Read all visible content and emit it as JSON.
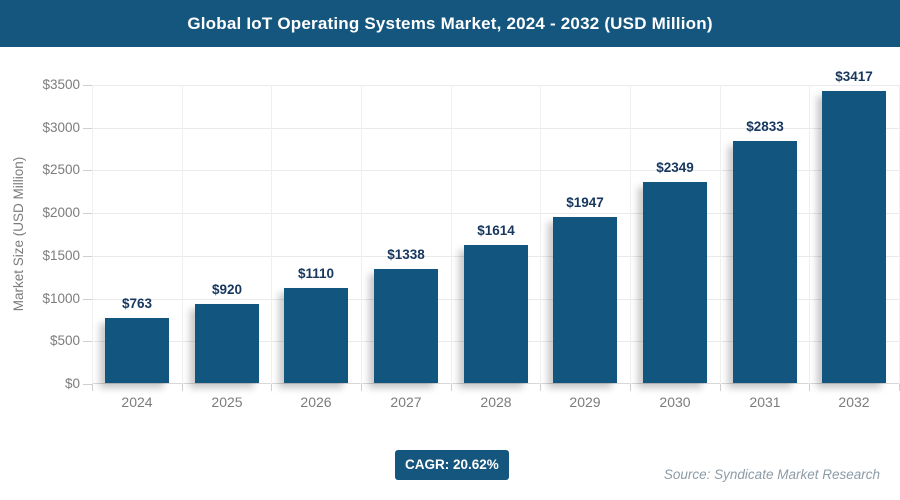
{
  "header": {
    "title": "Global IoT Operating Systems Market, 2024 - 2032 (USD Million)",
    "bg_color": "#15567E",
    "text_color": "#FFFFFF"
  },
  "chart_data": {
    "type": "bar",
    "title": "Global IoT Operating Systems Market, 2024 - 2032 (USD Million)",
    "categories": [
      "2024",
      "2025",
      "2026",
      "2027",
      "2028",
      "2029",
      "2030",
      "2031",
      "2032"
    ],
    "values": [
      763,
      920,
      1110,
      1338,
      1614,
      1947,
      2349,
      2833,
      3417
    ],
    "value_labels": [
      "$763",
      "$920",
      "$1110",
      "$1338",
      "$1614",
      "$1947",
      "$2349",
      "$2833",
      "$3417"
    ],
    "xlabel": "",
    "ylabel": "Market Size (USD Million)",
    "ylim": [
      0,
      3500
    ],
    "ytick_values": [
      0,
      500,
      1000,
      1500,
      2000,
      2500,
      3000,
      3500
    ],
    "ytick_labels": [
      "$0",
      "$500",
      "$1000",
      "$1500",
      "$2000",
      "$2500",
      "$3000",
      "$3500"
    ],
    "grid": "on",
    "legend": "none",
    "bar_color": "#12567F",
    "value_label_color": "#17375E",
    "axis_text_color": "#7C7C7C",
    "gridline_color": "#EAEAEA"
  },
  "footer": {
    "cagr_label": "CAGR: 20.62%",
    "badge_color": "#15567E",
    "source": "Source: Syndicate Market Research",
    "source_color": "#8C9BA6"
  }
}
